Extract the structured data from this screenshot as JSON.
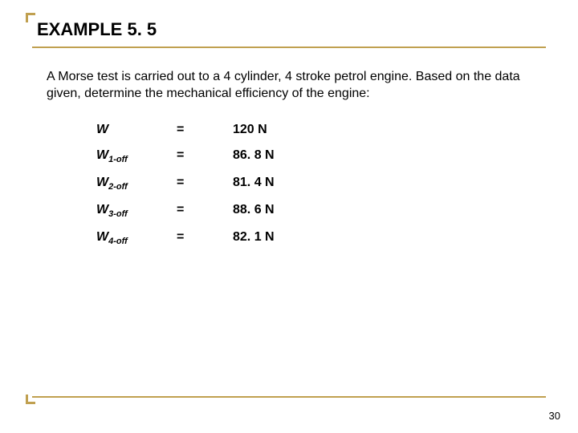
{
  "accent_color": "#c0a050",
  "title": "EXAMPLE 5. 5",
  "body": "A Morse test is carried out to a 4 cylinder, 4 stroke petrol engine. Based on the data given, determine the mechanical efficiency of the engine:",
  "rows": [
    {
      "var": "W",
      "sub": "",
      "eq": "=",
      "val": "120 N"
    },
    {
      "var": "W",
      "sub": "1-off",
      "eq": "=",
      "val": "86. 8 N"
    },
    {
      "var": "W",
      "sub": "2-off",
      "eq": "=",
      "val": "81. 4 N"
    },
    {
      "var": "W",
      "sub": "3-off",
      "eq": "=",
      "val": "88. 6 N"
    },
    {
      "var": "W",
      "sub": "4-off",
      "eq": "=",
      "val": "82. 1 N"
    }
  ],
  "page_number": "30"
}
